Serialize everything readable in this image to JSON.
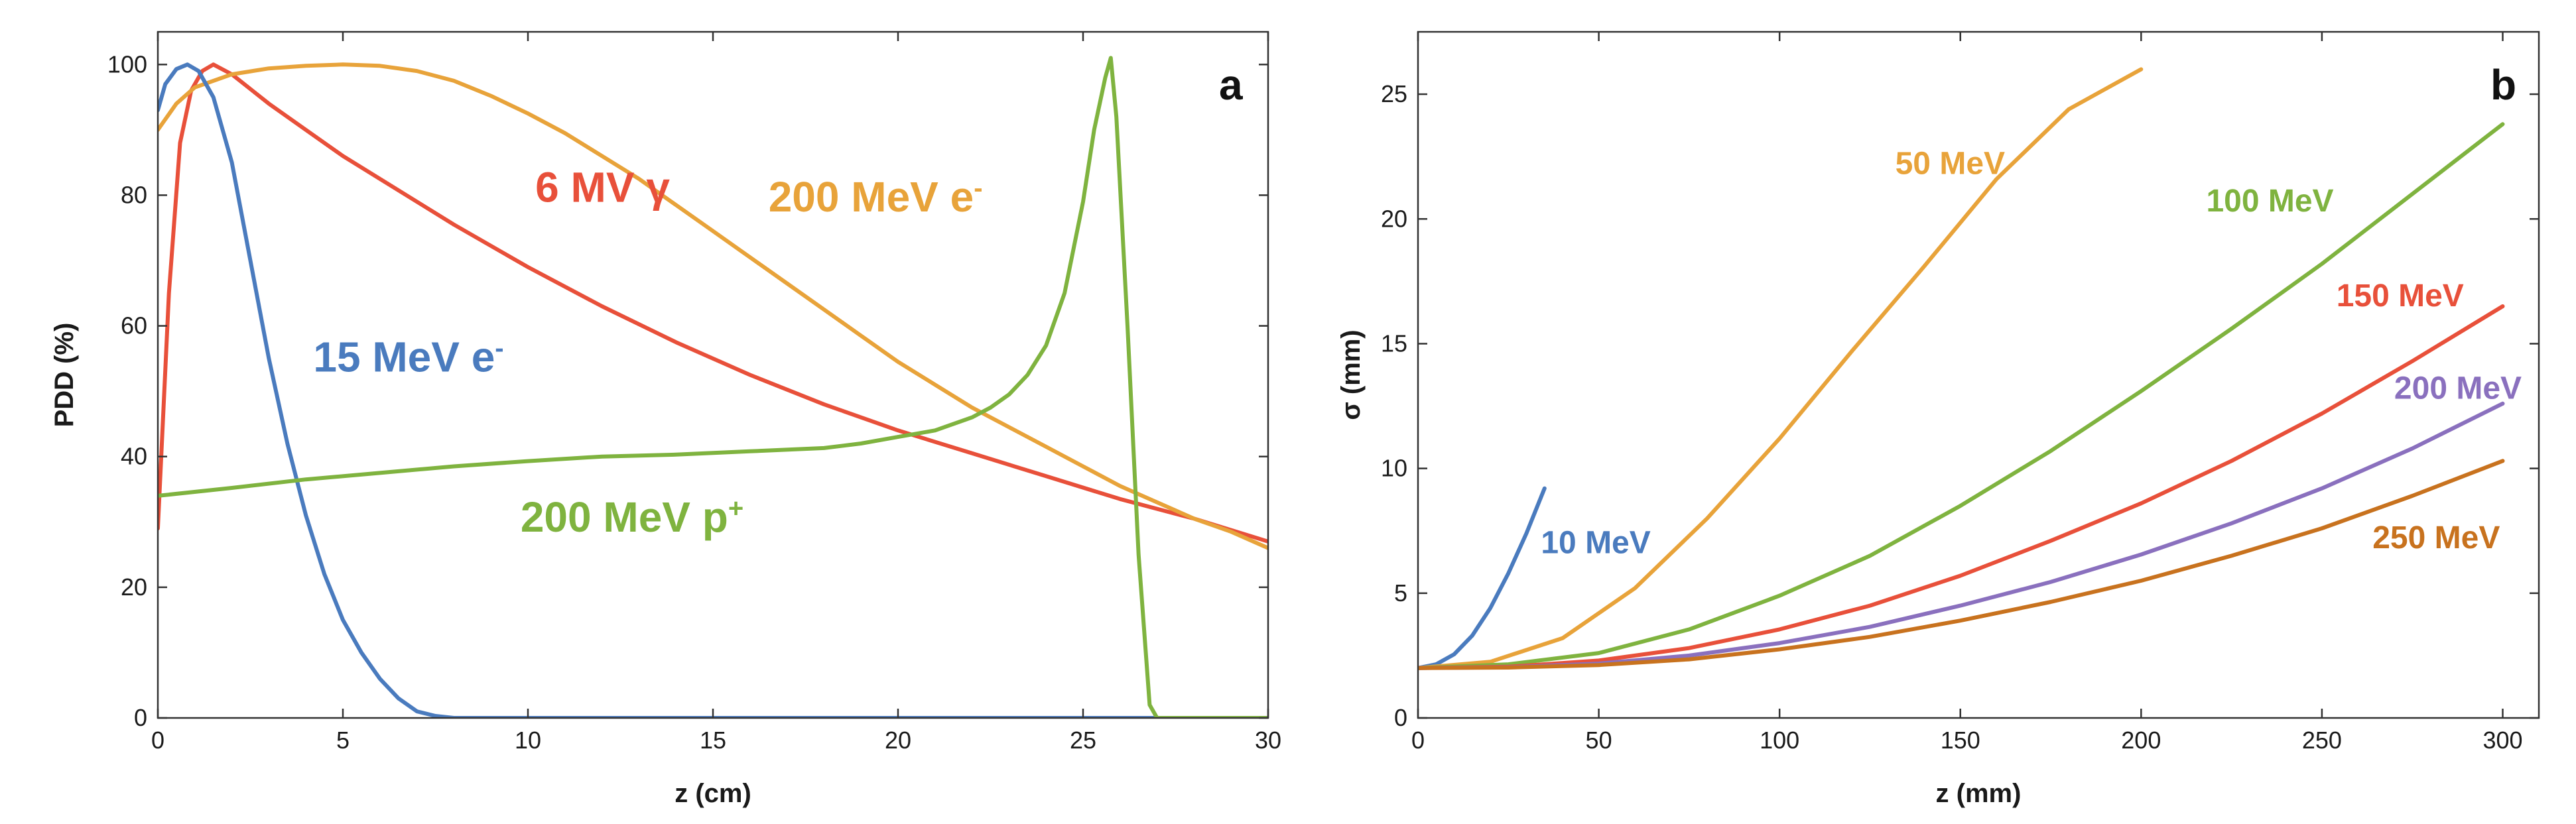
{
  "chart_data": [
    {
      "panel": "a",
      "type": "line",
      "xlabel": "z (cm)",
      "ylabel": "PDD (%)",
      "xlim": [
        0,
        30
      ],
      "ylim": [
        0,
        105
      ],
      "xticks": [
        0,
        5,
        10,
        15,
        20,
        25,
        30
      ],
      "yticks": [
        0,
        20,
        40,
        60,
        80,
        100
      ],
      "grid": false,
      "series": [
        {
          "name": "6 MV γ",
          "color": "#e8503a",
          "label_text": "6 MV γ",
          "label_at": [
            10.2,
            79
          ],
          "x": [
            0,
            0.3,
            0.6,
            0.9,
            1.2,
            1.5,
            2,
            3,
            4,
            5,
            6,
            8,
            10,
            12,
            14,
            16,
            18,
            20,
            22,
            24,
            26,
            28,
            30
          ],
          "y": [
            29,
            65,
            88,
            96,
            99,
            100,
            98.5,
            94,
            90,
            86,
            82.5,
            75.5,
            69,
            63,
            57.5,
            52.5,
            48,
            44,
            40.5,
            37,
            33.5,
            30.5,
            27
          ]
        },
        {
          "name": "200 MeV e-",
          "color": "#e8a33a",
          "label_text": "200 MeV e",
          "label_sup": "-",
          "label_at": [
            16.5,
            77.5
          ],
          "x": [
            0,
            0.5,
            1,
            2,
            3,
            4,
            5,
            6,
            7,
            8,
            9,
            10,
            11,
            12,
            13,
            14,
            15,
            16,
            17,
            18,
            19,
            20,
            21,
            22,
            23,
            24,
            25,
            26,
            27,
            28,
            29,
            30
          ],
          "y": [
            90,
            94,
            96.5,
            98.5,
            99.4,
            99.8,
            100,
            99.8,
            99,
            97.5,
            95.2,
            92.5,
            89.5,
            86,
            82.5,
            78.5,
            74.5,
            70.5,
            66.5,
            62.5,
            58.5,
            54.5,
            51,
            47.5,
            44.5,
            41.5,
            38.5,
            35.5,
            33,
            30.5,
            28.5,
            26
          ]
        },
        {
          "name": "15 MeV e-",
          "color": "#4a7bbe",
          "label_text": "15 MeV e",
          "label_sup": "-",
          "label_at": [
            4.2,
            53
          ],
          "x": [
            0,
            0.2,
            0.5,
            0.8,
            1.1,
            1.5,
            2,
            2.5,
            3,
            3.5,
            4,
            4.5,
            5,
            5.5,
            6,
            6.5,
            7,
            7.5,
            8,
            9,
            10,
            15,
            20,
            25,
            30
          ],
          "y": [
            93,
            97,
            99.3,
            100,
            99,
            95,
            85,
            70,
            55,
            42,
            31,
            22,
            15,
            10,
            6,
            3,
            1,
            0.3,
            0,
            0,
            0,
            0,
            0,
            0,
            0
          ]
        },
        {
          "name": "200 MeV p+",
          "color": "#7fb33f",
          "label_text": "200 MeV p",
          "label_sup": "+",
          "label_at": [
            9.8,
            28.5
          ],
          "x": [
            0,
            2,
            4,
            6,
            8,
            10,
            12,
            14,
            16,
            18,
            19,
            20,
            21,
            22,
            22.5,
            23,
            23.5,
            24,
            24.5,
            25,
            25.3,
            25.6,
            25.75,
            25.9,
            26.2,
            26.5,
            26.8,
            27,
            28,
            30
          ],
          "y": [
            34,
            35.2,
            36.5,
            37.5,
            38.5,
            39.3,
            40,
            40.3,
            40.8,
            41.3,
            42,
            43,
            44,
            46,
            47.5,
            49.5,
            52.5,
            57,
            65,
            79,
            90,
            98,
            101,
            92,
            60,
            25,
            2,
            0,
            0,
            0
          ]
        }
      ]
    },
    {
      "panel": "b",
      "type": "line",
      "xlabel": "z (mm)",
      "ylabel": "σ (mm)",
      "xlim": [
        0,
        310
      ],
      "ylim": [
        0,
        27.5
      ],
      "xticks": [
        0,
        50,
        100,
        150,
        200,
        250,
        300
      ],
      "yticks": [
        0,
        5,
        10,
        15,
        20,
        25
      ],
      "grid": false,
      "series": [
        {
          "name": "10 MeV",
          "color": "#4a7bbe",
          "label_text": "10 MeV",
          "label_at": [
            34,
            6.6
          ],
          "x": [
            0,
            5,
            10,
            15,
            20,
            25,
            30,
            35
          ],
          "y": [
            2,
            2.15,
            2.55,
            3.3,
            4.4,
            5.8,
            7.4,
            9.2
          ]
        },
        {
          "name": "50 MeV",
          "color": "#e8a33a",
          "label_text": "50 MeV",
          "label_at": [
            132,
            21.8
          ],
          "x": [
            0,
            20,
            40,
            60,
            80,
            100,
            120,
            140,
            160,
            180,
            200
          ],
          "y": [
            2,
            2.25,
            3.2,
            5.2,
            8,
            11.2,
            14.7,
            18.1,
            21.6,
            24.4,
            26
          ]
        },
        {
          "name": "100 MeV",
          "color": "#7fb33f",
          "label_text": "100 MeV",
          "label_at": [
            218,
            20.3
          ],
          "x": [
            0,
            25,
            50,
            75,
            100,
            125,
            150,
            175,
            200,
            225,
            250,
            275,
            300
          ],
          "y": [
            2,
            2.15,
            2.6,
            3.55,
            4.9,
            6.5,
            8.5,
            10.7,
            13.1,
            15.6,
            18.2,
            21,
            23.8
          ]
        },
        {
          "name": "150 MeV",
          "color": "#e8503a",
          "label_text": "150 MeV",
          "label_at": [
            254,
            16.5
          ],
          "x": [
            0,
            25,
            50,
            75,
            100,
            125,
            150,
            175,
            200,
            225,
            250,
            275,
            300
          ],
          "y": [
            2,
            2.05,
            2.3,
            2.8,
            3.55,
            4.5,
            5.7,
            7.1,
            8.6,
            10.3,
            12.2,
            14.3,
            16.5
          ]
        },
        {
          "name": "200 MeV",
          "color": "#8a70be",
          "label_text": "200 MeV",
          "label_at": [
            270,
            12.8
          ],
          "x": [
            0,
            25,
            50,
            75,
            100,
            125,
            150,
            175,
            200,
            225,
            250,
            275,
            300
          ],
          "y": [
            2,
            2.03,
            2.18,
            2.5,
            3,
            3.65,
            4.5,
            5.45,
            6.55,
            7.8,
            9.2,
            10.8,
            12.6
          ]
        },
        {
          "name": "250 MeV",
          "color": "#c8721e",
          "label_text": "250 MeV",
          "label_at": [
            264,
            6.8
          ],
          "x": [
            0,
            25,
            50,
            75,
            100,
            125,
            150,
            175,
            200,
            225,
            250,
            275,
            300
          ],
          "y": [
            2,
            2.02,
            2.12,
            2.35,
            2.75,
            3.25,
            3.9,
            4.65,
            5.5,
            6.5,
            7.6,
            8.9,
            10.3
          ]
        }
      ]
    }
  ]
}
